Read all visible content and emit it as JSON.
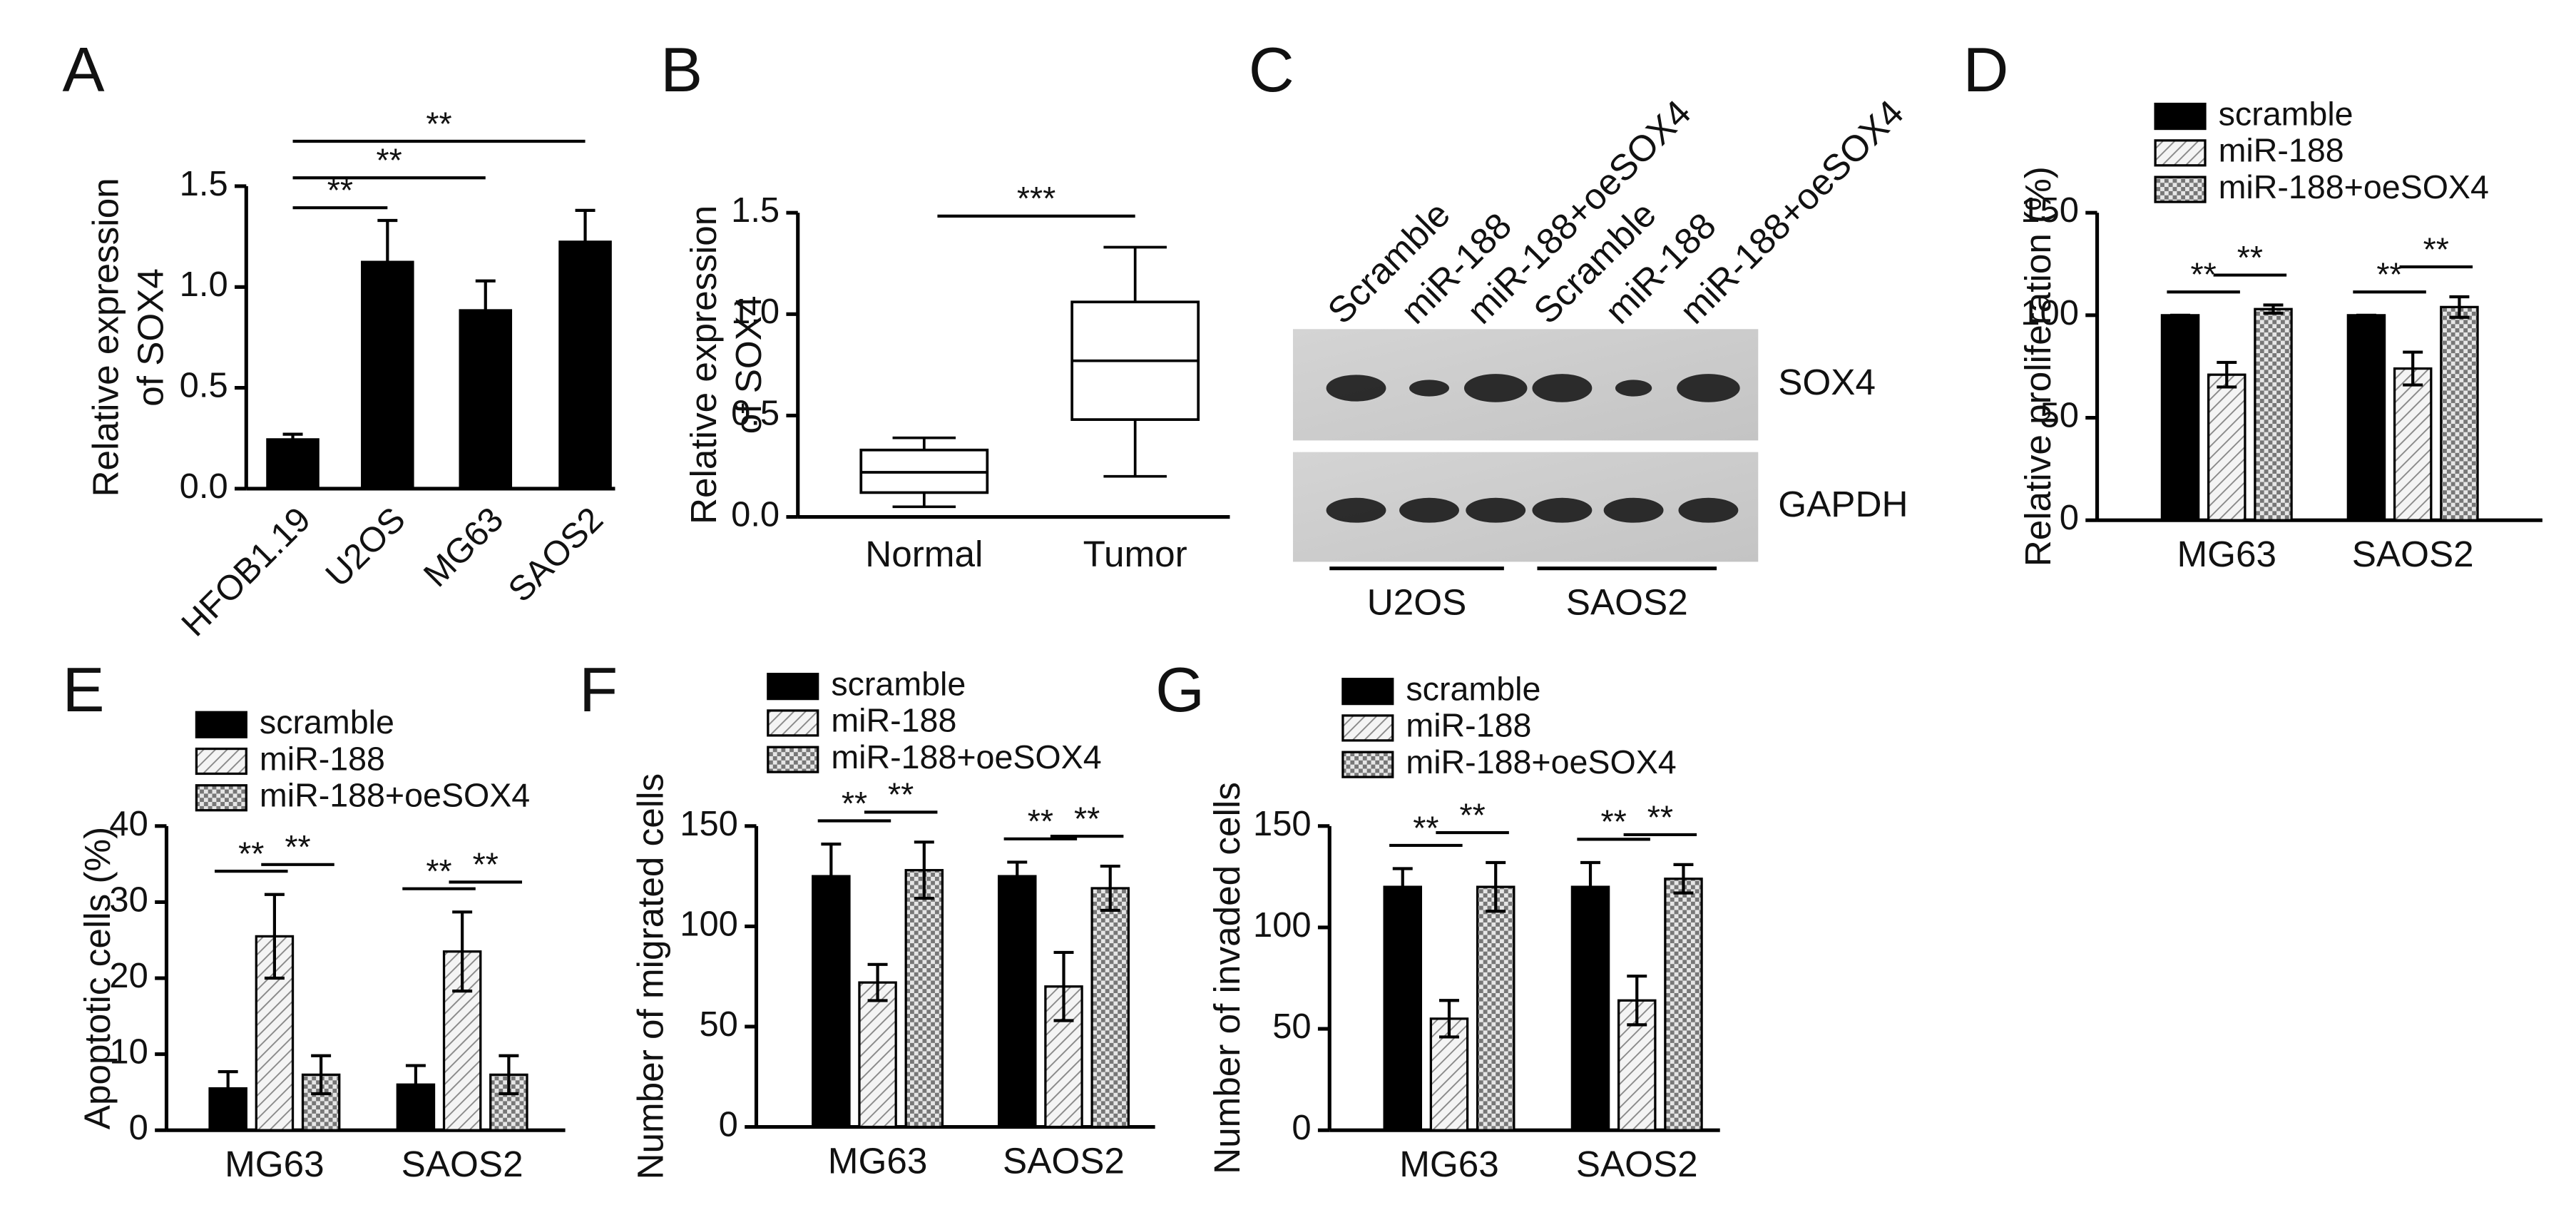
{
  "chart_data": [
    {
      "type": "bar",
      "panel": "A",
      "y_label": [
        "Relative expression",
        "of SOX4"
      ],
      "categories": [
        "HFOB1.19",
        "U2OS",
        "MG63",
        "SAOS2"
      ],
      "values": [
        0.25,
        1.13,
        0.89,
        1.23
      ],
      "errors": [
        0.02,
        0.2,
        0.14,
        0.15
      ],
      "color": "#000000",
      "ylim": [
        0,
        1.5
      ],
      "yticks": [
        {
          "value": 0,
          "label": "0.0"
        },
        0.5,
        {
          "value": 1,
          "label": "1.0"
        },
        1.5
      ],
      "annotations": [
        "**",
        "**",
        "**"
      ]
    },
    {
      "type": "box",
      "panel": "B",
      "y_label": [
        "Relative expression",
        "of SOX4"
      ],
      "categories": [
        "Normal",
        "Tumor"
      ],
      "min": [
        0.05,
        0.2
      ],
      "q1": [
        0.12,
        0.48
      ],
      "median": [
        0.22,
        0.77
      ],
      "q3": [
        0.33,
        1.06
      ],
      "max": [
        0.39,
        1.33
      ],
      "ylim": [
        0,
        1.5
      ],
      "yticks": [
        {
          "value": 0,
          "label": "0.0"
        },
        0.5,
        {
          "value": 1,
          "label": "1.0"
        },
        1.5
      ],
      "annotations": [
        "***"
      ]
    },
    {
      "type": "blot",
      "panel": "C",
      "lanes": [
        "Scramble",
        "miR-188",
        "miR-188+oeSOX4",
        "Scramble",
        "miR-188",
        "miR-188+oeSOX4"
      ],
      "rows": [
        "SOX4",
        "GAPDH"
      ],
      "groups": [
        "U2OS",
        "SAOS2"
      ]
    },
    {
      "type": "grouped_bar",
      "panel": "D",
      "y_label": "Relative proliferation (%)",
      "categories": [
        "MG63",
        "SAOS2"
      ],
      "series": [
        {
          "name": "scramble",
          "color": "#000000",
          "pattern": "solid",
          "values": [
            100,
            100
          ],
          "errors": [
            0,
            0
          ]
        },
        {
          "name": "miR-188",
          "color": "#000000",
          "pattern": "hatch",
          "values": [
            71,
            74
          ],
          "errors": [
            6,
            8
          ]
        },
        {
          "name": "miR-188+oeSOX4",
          "color": "#000000",
          "pattern": "check",
          "values": [
            103,
            104
          ],
          "errors": [
            2,
            5
          ]
        }
      ],
      "ylim": [
        0,
        150
      ],
      "yticks": [
        0,
        50,
        100,
        150
      ],
      "annotations": [
        "**",
        "**",
        "**",
        "**"
      ]
    },
    {
      "type": "grouped_bar",
      "panel": "E",
      "y_label": "Apoptotic cells (%)",
      "categories": [
        "MG63",
        "SAOS2"
      ],
      "series": [
        {
          "name": "scramble",
          "color": "#000000",
          "pattern": "solid",
          "values": [
            5.5,
            6
          ],
          "errors": [
            2.2,
            2.5
          ]
        },
        {
          "name": "miR-188",
          "color": "#000000",
          "pattern": "hatch",
          "values": [
            25.5,
            23.5
          ],
          "errors": [
            5.5,
            5.2
          ]
        },
        {
          "name": "miR-188+oeSOX4",
          "color": "#000000",
          "pattern": "check",
          "values": [
            7.3,
            7.3
          ],
          "errors": [
            2.5,
            2.5
          ]
        }
      ],
      "ylim": [
        0,
        40
      ],
      "yticks": [
        0,
        10,
        20,
        30,
        40
      ],
      "annotations": [
        "**",
        "**",
        "**",
        "**"
      ]
    },
    {
      "type": "grouped_bar",
      "panel": "F",
      "y_label": "Number of migrated cells",
      "categories": [
        "MG63",
        "SAOS2"
      ],
      "series": [
        {
          "name": "scramble",
          "color": "#000000",
          "pattern": "solid",
          "values": [
            125,
            125
          ],
          "errors": [
            16,
            7
          ]
        },
        {
          "name": "miR-188",
          "color": "#000000",
          "pattern": "hatch",
          "values": [
            72,
            70
          ],
          "errors": [
            9,
            17
          ]
        },
        {
          "name": "miR-188+oeSOX4",
          "color": "#000000",
          "pattern": "check",
          "values": [
            128,
            119
          ],
          "errors": [
            14,
            11
          ]
        }
      ],
      "ylim": [
        0,
        150
      ],
      "yticks": [
        0,
        50,
        100,
        150
      ],
      "annotations": [
        "**",
        "**",
        "**",
        "**"
      ]
    },
    {
      "type": "grouped_bar",
      "panel": "G",
      "y_label": "Number of invaded cells",
      "categories": [
        "MG63",
        "SAOS2"
      ],
      "series": [
        {
          "name": "scramble",
          "color": "#000000",
          "pattern": "solid",
          "values": [
            120,
            120
          ],
          "errors": [
            9,
            12
          ]
        },
        {
          "name": "miR-188",
          "color": "#000000",
          "pattern": "hatch",
          "values": [
            55,
            64
          ],
          "errors": [
            9,
            12
          ]
        },
        {
          "name": "miR-188+oeSOX4",
          "color": "#000000",
          "pattern": "check",
          "values": [
            120,
            124
          ],
          "errors": [
            12,
            7
          ]
        }
      ],
      "ylim": [
        0,
        150
      ],
      "yticks": [
        0,
        50,
        100,
        150
      ],
      "annotations": [
        "**",
        "**",
        "**",
        "**"
      ]
    }
  ]
}
